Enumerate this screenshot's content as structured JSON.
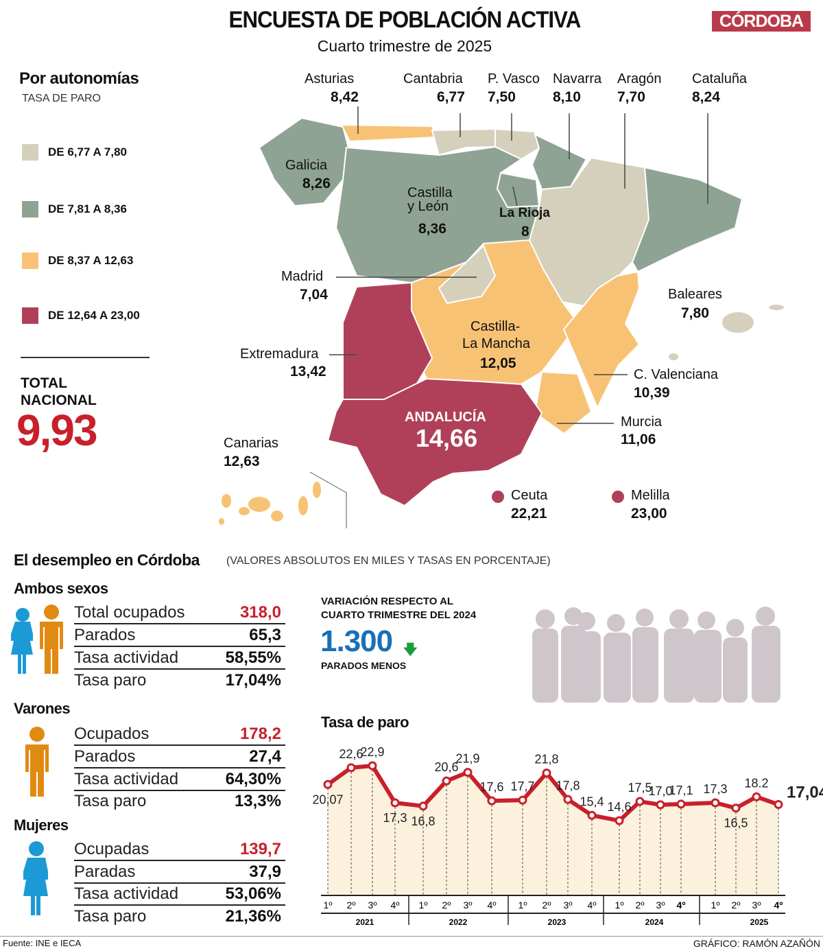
{
  "header": {
    "title": "ENCUESTA DE POBLACIÓN ACTIVA",
    "subtitle": "Cuarto trimestre de 2025",
    "logo": "CÓRDOBA"
  },
  "colors": {
    "range1": "#d4d0bb",
    "range2": "#8fa394",
    "range3": "#f8c275",
    "range4": "#b0405a",
    "accent_red": "#c8202b",
    "blue": "#1a6fb5",
    "female": "#1b9ad6",
    "male": "#e08a12",
    "silhouettes": "#cfc6cb"
  },
  "map": {
    "heading": "Por autonomías",
    "subheading": "TASA DE PARO",
    "legend": [
      "DE 6,77 A 7,80",
      "DE 7,81 A 8,36",
      "DE 8,37 A 12,63",
      "DE 12,64 A 23,00"
    ],
    "total_label_1": "TOTAL",
    "total_label_2": "NACIONAL",
    "total_value": "9,93",
    "regions": {
      "asturias": {
        "name": "Asturias",
        "value": "8,42"
      },
      "cantabria": {
        "name": "Cantabria",
        "value": "6,77"
      },
      "pvasco": {
        "name": "P. Vasco",
        "value": "7,50"
      },
      "navarra": {
        "name": "Navarra",
        "value": "8,10"
      },
      "aragon": {
        "name": "Aragón",
        "value": "7,70"
      },
      "cataluna": {
        "name": "Cataluña",
        "value": "8,24"
      },
      "galicia": {
        "name": "Galicia",
        "value": "8,26"
      },
      "cyl": {
        "name1": "Castilla",
        "name2": "y León",
        "value": "8,36"
      },
      "rioja": {
        "name": "La Rioja",
        "value": "8"
      },
      "madrid": {
        "name": "Madrid",
        "value": "7,04"
      },
      "baleares": {
        "name": "Baleares",
        "value": "7,80"
      },
      "clm": {
        "name1": "Castilla-",
        "name2": "La Mancha",
        "value": "12,05"
      },
      "extremadura": {
        "name": "Extremadura",
        "value": "13,42"
      },
      "valenciana": {
        "name": "C. Valenciana",
        "value": "10,39"
      },
      "andalucia": {
        "name": "ANDALUCÍA",
        "value": "14,66"
      },
      "murcia": {
        "name": "Murcia",
        "value": "11,06"
      },
      "canarias": {
        "name": "Canarias",
        "value": "12,63"
      },
      "ceuta": {
        "name": "Ceuta",
        "value": "22,21"
      },
      "melilla": {
        "name": "Melilla",
        "value": "23,00"
      }
    }
  },
  "cordoba": {
    "heading": "El desempleo en Córdoba",
    "note": "(VALORES ABSOLUTOS EN MILES Y TASAS EN PORCENTAJE)",
    "groups": [
      {
        "title": "Ambos sexos",
        "rows": [
          [
            "Total ocupados",
            "318,0"
          ],
          [
            "Parados",
            "65,3"
          ],
          [
            "Tasa actividad",
            "58,55%"
          ],
          [
            "Tasa paro",
            "17,04%"
          ]
        ]
      },
      {
        "title": "Varones",
        "rows": [
          [
            "Ocupados",
            "178,2"
          ],
          [
            "Parados",
            "27,4"
          ],
          [
            "Tasa actividad",
            "64,30%"
          ],
          [
            "Tasa paro",
            "13,3%"
          ]
        ]
      },
      {
        "title": "Mujeres",
        "rows": [
          [
            "Ocupadas",
            "139,7"
          ],
          [
            "Paradas",
            "37,9"
          ],
          [
            "Tasa actividad",
            "53,06%"
          ],
          [
            "Tasa paro",
            "21,36%"
          ]
        ]
      }
    ],
    "variation": {
      "label_1": "VARIACIÓN RESPECTO AL",
      "label_2": "CUARTO TRIMESTRE DEL 2024",
      "value": "1.300",
      "caption": "PARADOS MENOS",
      "icon": "arrow-down-icon"
    }
  },
  "chart_data": {
    "type": "line",
    "title": "Tasa de paro",
    "categories": [
      "1º",
      "2º",
      "3º",
      "4º",
      "1º",
      "2º",
      "3º",
      "4º",
      "1º",
      "2º",
      "3º",
      "4º",
      "1º",
      "2º",
      "3º",
      "4º",
      "1º",
      "2º",
      "3º",
      "4º"
    ],
    "years": [
      "2021",
      "2022",
      "2023",
      "2024",
      "2025"
    ],
    "values": [
      20.07,
      22.6,
      22.9,
      17.3,
      16.8,
      20.6,
      21.9,
      17.6,
      17.7,
      21.8,
      17.8,
      15.4,
      14.6,
      17.5,
      17.0,
      17.1,
      17.3,
      16.5,
      18.2,
      17.04
    ],
    "labels": [
      "20,07",
      "22,6",
      "22,9",
      "17,3",
      "16,8",
      "20,6",
      "21,9",
      "17,6",
      "17,7",
      "21,8",
      "17,8",
      "15,4",
      "14,6",
      "17,5",
      "17,0",
      "17,1",
      "17,3",
      "16,5",
      "18.2",
      "17,04"
    ],
    "line_color": "#c8202b",
    "fill_color": "#fbf1dc",
    "grid": false
  },
  "footer": {
    "source": "Fuente: INE e IECA",
    "credit": "GRÁFICO: RAMÓN AZAÑÓN"
  }
}
